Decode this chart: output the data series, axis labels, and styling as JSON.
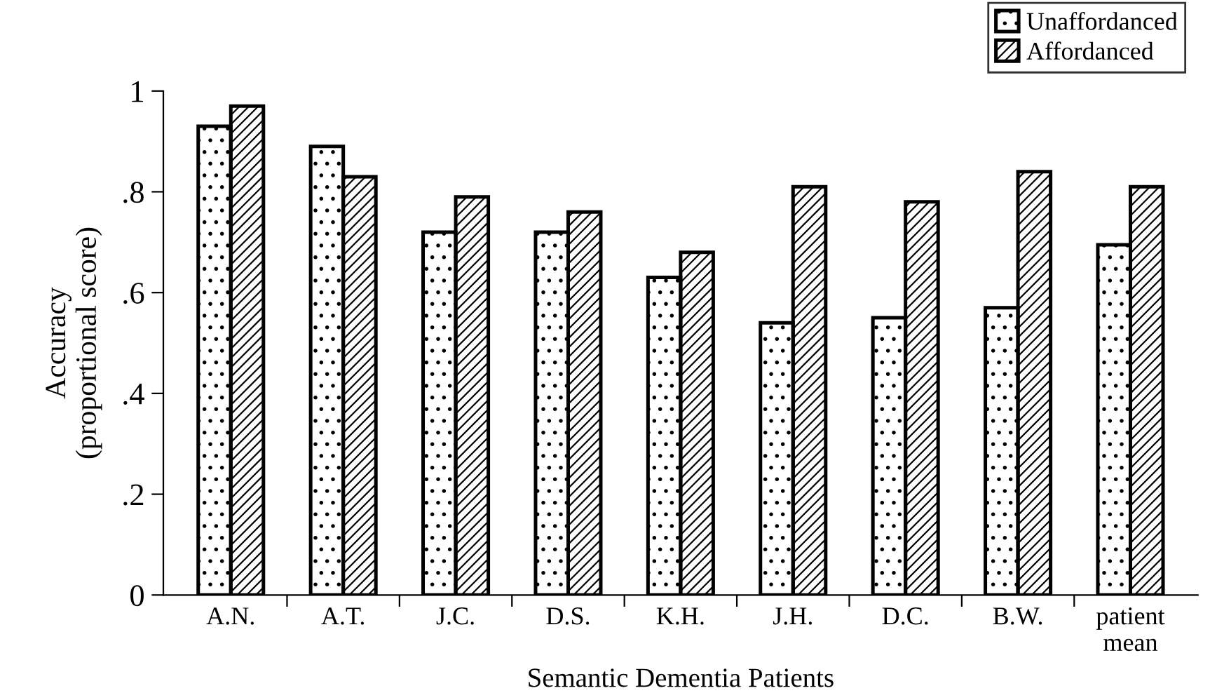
{
  "chart_data": {
    "type": "bar",
    "xlabel": "Semantic Dementia Patients",
    "ylabel": "Accuracy\n(proportional score)",
    "categories": [
      "A.N.",
      "A.T.",
      "J.C.",
      "D.S.",
      "K.H.",
      "J.H.",
      "D.C.",
      "B.W.",
      "patient\nmean"
    ],
    "series": [
      {
        "name": "Unaffordanced",
        "color": "#000000",
        "values": [
          0.93,
          0.89,
          0.72,
          0.72,
          0.63,
          0.54,
          0.55,
          0.57,
          0.695
        ]
      },
      {
        "name": "Affordanced",
        "color": "#000000",
        "values": [
          0.97,
          0.83,
          0.79,
          0.76,
          0.68,
          0.81,
          0.78,
          0.84,
          0.81
        ]
      }
    ],
    "ylim": [
      0,
      1
    ],
    "yticks": [
      0,
      {
        "value": 0.2,
        "label": ".2"
      },
      {
        "value": 0.4,
        "label": ".4"
      },
      {
        "value": 0.6,
        "label": ".6"
      },
      {
        "value": 0.8,
        "label": ".8"
      },
      1
    ],
    "grid": false,
    "legend": "top right"
  }
}
